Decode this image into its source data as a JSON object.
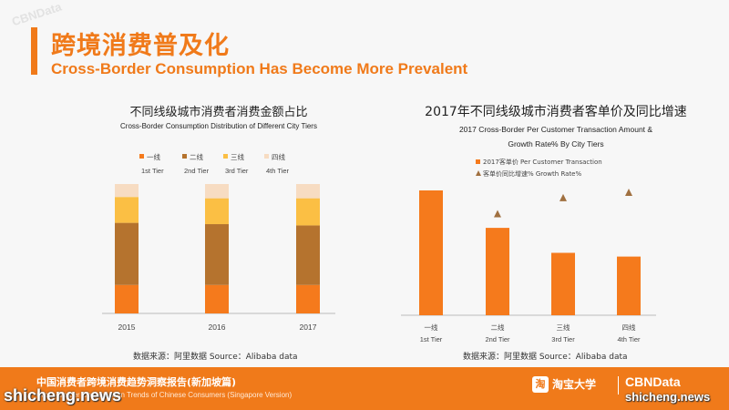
{
  "header": {
    "title_cn": "跨境消费普及化",
    "title_en": "Cross-Border Consumption Has Become More Prevalent",
    "accent_color": "#f07a1a"
  },
  "chart_data": [
    {
      "type": "bar",
      "stacked": true,
      "title": "不同线级城市消费者消费金额占比",
      "subtitle": "Cross-Border Consumption Distribution of Different City Tiers",
      "categories": [
        "2015",
        "2016",
        "2017"
      ],
      "legend_position": "top",
      "ylim": [
        0,
        100
      ],
      "series": [
        {
          "name": "一线",
          "name_en": "1st Tier",
          "color": "#f57a1c",
          "values": [
            22,
            22,
            22
          ]
        },
        {
          "name": "二线",
          "name_en": "2nd Tier",
          "color": "#b5732e",
          "values": [
            48,
            47,
            46
          ]
        },
        {
          "name": "三线",
          "name_en": "3rd Tier",
          "color": "#fbbf44",
          "values": [
            20,
            20,
            21
          ]
        },
        {
          "name": "四线",
          "name_en": "4th Tier",
          "color": "#f7dcc2",
          "values": [
            10,
            11,
            11
          ]
        }
      ],
      "source": "数据来源：阿里数据 Source：Alibaba data"
    },
    {
      "type": "bar",
      "title": "2017年不同线级城市消费者客单价及同比增速",
      "subtitle_line1": "2017 Cross-Border Per Customer Transaction Amount &",
      "subtitle_line2": "Growth Rate% By City Tiers",
      "categories": [
        {
          "cn": "一线",
          "en": "1st Tier"
        },
        {
          "cn": "二线",
          "en": "2nd Tier"
        },
        {
          "cn": "三线",
          "en": "3rd Tier"
        },
        {
          "cn": "四线",
          "en": "4th Tier"
        }
      ],
      "legend_position": "top",
      "series": [
        {
          "name": "2017客单价 Per Customer Transaction",
          "type": "bar",
          "color": "#f57a1c",
          "values": [
            100,
            70,
            50,
            47
          ]
        },
        {
          "name": "客单价同比增速% Growth Rate%",
          "type": "marker",
          "color": "#a07040",
          "values": [
            null,
            100,
            115,
            120
          ]
        }
      ],
      "source": "数据来源：阿里数据 Source：Alibaba data"
    }
  ],
  "footer": {
    "report_cn": "中国消费者跨境消费趋势洞察报告(新加坡篇)",
    "report_en": "Cross-Border Consumption Trends of Chinese Consumers (Singapore Version)",
    "logo_icon": "淘",
    "logo_cn": "淘宝大学",
    "logo_cbn": "CBNData"
  },
  "watermarks": {
    "left": "shicheng.news",
    "right": "shicheng.news",
    "top": "CBNData"
  }
}
